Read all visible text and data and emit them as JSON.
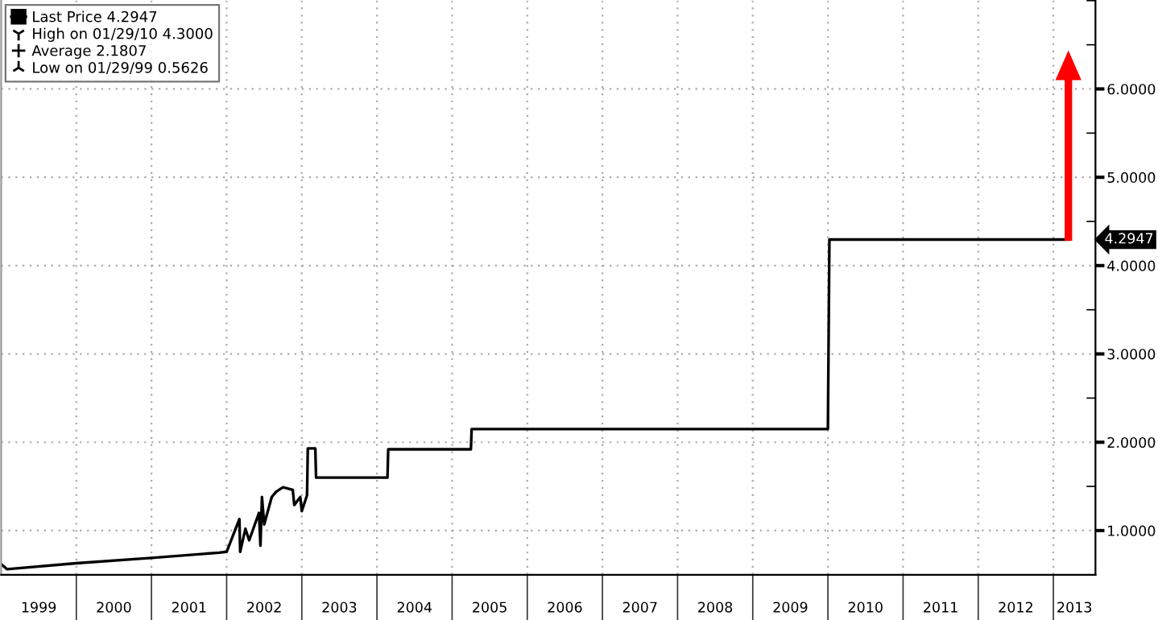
{
  "chart_data": {
    "type": "line",
    "x": [
      1999.0,
      1999.08,
      2000.0,
      2001.0,
      2001.9,
      2002.0,
      2002.17,
      2002.18,
      2002.25,
      2002.3,
      2002.43,
      2002.45,
      2002.47,
      2002.5,
      2002.6,
      2002.66,
      2002.75,
      2002.88,
      2002.9,
      2002.98,
      2003.0,
      2003.07,
      2003.08,
      2003.18,
      2003.19,
      2004.14,
      2004.15,
      2005.25,
      2005.26,
      2010.0,
      2010.02,
      2013.2
    ],
    "series": [
      {
        "name": "Last Price 4.2947",
        "color": "#000000",
        "values": [
          0.62,
          0.5626,
          0.63,
          0.69,
          0.75,
          0.76,
          1.13,
          0.76,
          1.02,
          0.89,
          1.2,
          0.83,
          1.38,
          1.07,
          1.38,
          1.44,
          1.49,
          1.46,
          1.29,
          1.38,
          1.22,
          1.4,
          1.93,
          1.93,
          1.6,
          1.6,
          1.92,
          1.92,
          2.15,
          2.15,
          4.2947,
          4.2947
        ]
      }
    ],
    "xlim": [
      1999.0,
      2013.56
    ],
    "xticks": [
      {
        "value": 2000,
        "label": null
      },
      {
        "value": 2001,
        "label": null
      },
      {
        "value": 2002,
        "label": null
      },
      {
        "value": 2003,
        "label": null
      },
      {
        "value": 2004,
        "label": null
      },
      {
        "value": 2005,
        "label": null
      },
      {
        "value": 2006,
        "label": null
      },
      {
        "value": 2007,
        "label": null
      },
      {
        "value": 2008,
        "label": null
      },
      {
        "value": 2009,
        "label": null
      },
      {
        "value": 2010,
        "label": null
      },
      {
        "value": 2011,
        "label": null
      },
      {
        "value": 2012,
        "label": null
      },
      {
        "value": 2013,
        "label": null
      },
      {
        "value": 1999.5,
        "label": "1999"
      },
      {
        "value": 2000.5,
        "label": "2000"
      },
      {
        "value": 2001.5,
        "label": "2001"
      },
      {
        "value": 2002.5,
        "label": "2002"
      },
      {
        "value": 2003.5,
        "label": "2003"
      },
      {
        "value": 2004.5,
        "label": "2004"
      },
      {
        "value": 2005.5,
        "label": "2005"
      },
      {
        "value": 2006.5,
        "label": "2006"
      },
      {
        "value": 2007.5,
        "label": "2007"
      },
      {
        "value": 2008.5,
        "label": "2008"
      },
      {
        "value": 2009.5,
        "label": "2009"
      },
      {
        "value": 2010.5,
        "label": "2010"
      },
      {
        "value": 2011.5,
        "label": "2011"
      },
      {
        "value": 2012.5,
        "label": "2012"
      },
      {
        "value": 2013.28,
        "label": "2013"
      }
    ],
    "ylim": [
      0.5,
      7.0
    ],
    "yticks": [
      {
        "value": 1,
        "label": "1.0000"
      },
      {
        "value": 2,
        "label": "2.0000"
      },
      {
        "value": 3,
        "label": "3.0000"
      },
      {
        "value": 4,
        "label": "4.0000"
      },
      {
        "value": 5,
        "label": "5.0000"
      },
      {
        "value": 6,
        "label": "6.0000"
      },
      {
        "value": 1.5,
        "label": null
      },
      {
        "value": 2.5,
        "label": null
      },
      {
        "value": 3.5,
        "label": null
      },
      {
        "value": 4.5,
        "label": null
      },
      {
        "value": 5.5,
        "label": null
      },
      {
        "value": 6.5,
        "label": null
      },
      {
        "value": 7,
        "label": null
      }
    ],
    "grid": true,
    "legend": "top left",
    "annotations": [
      "4.2947",
      "High on 01/29/10 4.3000",
      "Average 2.1807",
      "Low on 01/29/99 0.5626"
    ]
  }
}
